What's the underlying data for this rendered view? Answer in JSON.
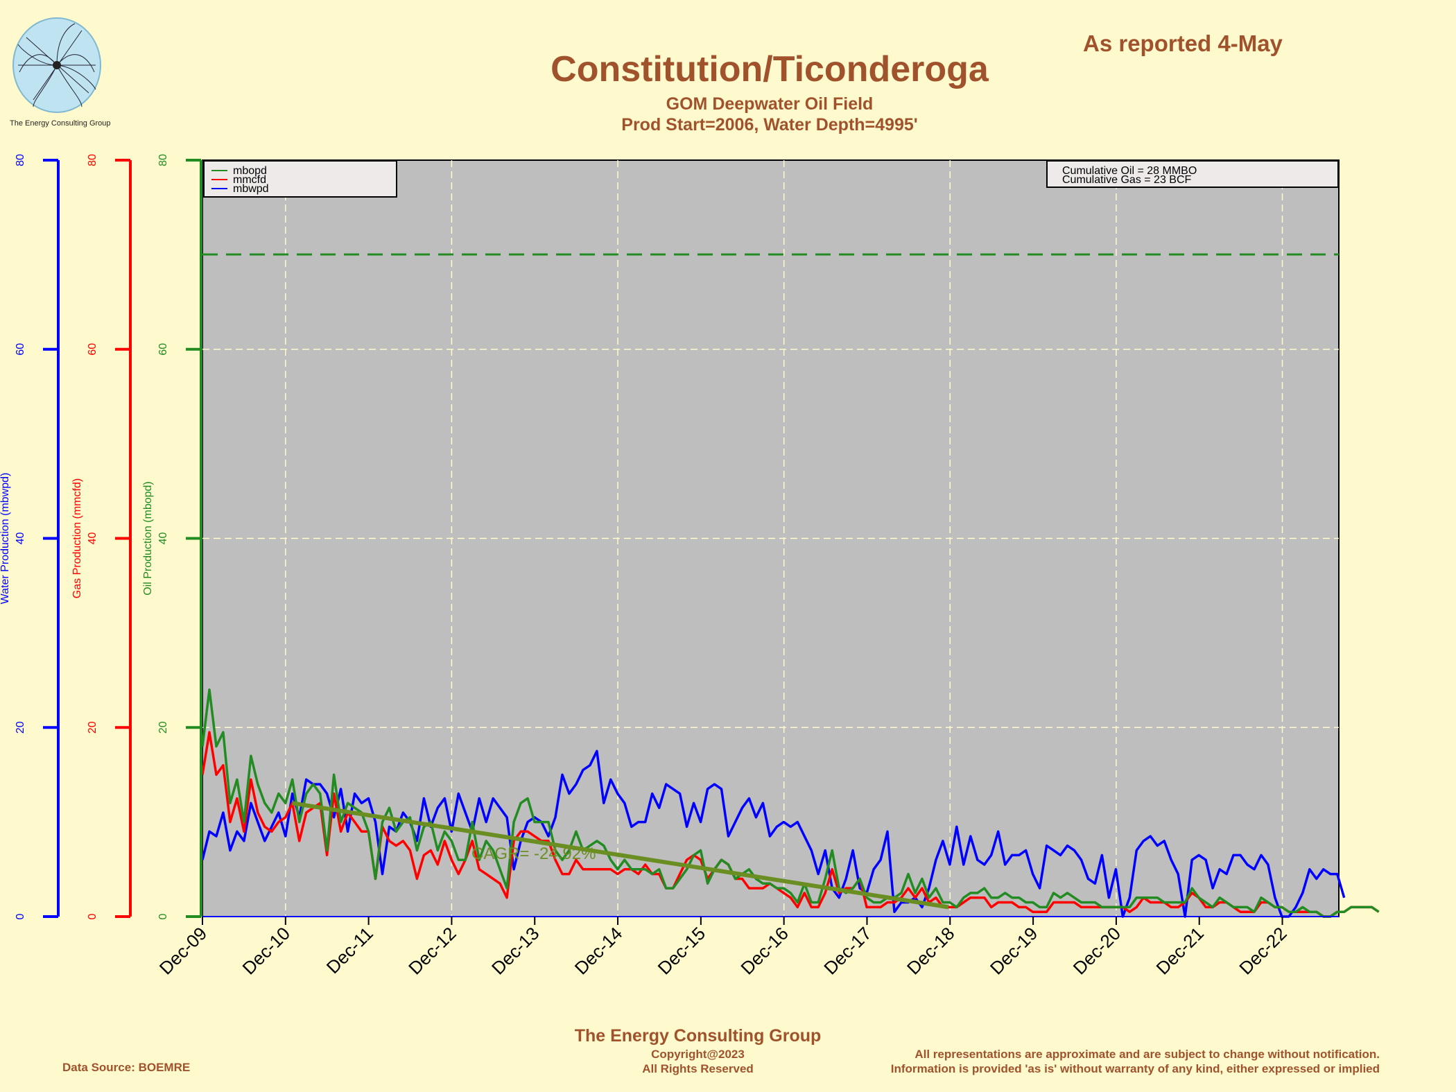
{
  "header": {
    "title": "Constitution/Ticonderoga",
    "subtitle": "GOM Deepwater Oil Field",
    "subtitle2": "Prod Start=2006, Water Depth=4995'",
    "as_reported": "As reported 4-May",
    "logo_caption": "The Energy Consulting Group"
  },
  "footer": {
    "company": "The Energy Consulting Group",
    "copyright": "Copyright@2023",
    "rights": "All Rights Reserved",
    "source": "Data Source: BOEMRE",
    "disclaimer1": "All representations are approximate and are subject to change without notification.",
    "disclaimer2": "Information is provided 'as is' without warranty of any kind, either expressed or implied"
  },
  "colors": {
    "background": "#fffacd",
    "plot_bg": "#bebebe",
    "oil": "#228b22",
    "gas": "#ff0000",
    "water": "#0000ff",
    "trend": "#6b8e23",
    "text_brown": "#a0522d"
  },
  "chart_data": {
    "type": "line",
    "title": "Constitution/Ticonderoga",
    "x_tick_labels": [
      "Dec-09",
      "Dec-10",
      "Dec-11",
      "Dec-12",
      "Dec-13",
      "Dec-14",
      "Dec-15",
      "Dec-16",
      "Dec-17",
      "Dec-18",
      "Dec-19",
      "Dec-20",
      "Dec-21",
      "Dec-22"
    ],
    "xlim": [
      2009.92,
      2023.6
    ],
    "axes": [
      {
        "label": "Water Production (mbwpd)",
        "color": "#0000ff",
        "ylim": [
          0,
          80
        ],
        "ticks": [
          0,
          20,
          40,
          60,
          80
        ]
      },
      {
        "label": "Gas Production (mmcfd)",
        "color": "#ff0000",
        "ylim": [
          0,
          80
        ],
        "ticks": [
          0,
          20,
          40,
          60,
          80
        ]
      },
      {
        "label": "Oil Production (mbopd)",
        "color": "#228b22",
        "ylim": [
          0,
          80
        ],
        "ticks": [
          0,
          20,
          40,
          60,
          80
        ]
      }
    ],
    "grid": true,
    "legend_position": "top-left",
    "legend": [
      "mbopd",
      "mmcfd",
      "mbwpd"
    ],
    "cumulative": [
      "Cumulative Oil = 28  MMBO",
      "Cumulative Gas = 23  BCF"
    ],
    "reference_line": {
      "value": 70,
      "style": "dashed",
      "color": "#228b22"
    },
    "trend": {
      "label": "CAGR= -24.92%",
      "x": [
        2011.0,
        2018.9
      ],
      "y": [
        12,
        1
      ]
    },
    "start_year": 2009.92,
    "step_years": 0.0833,
    "series": [
      {
        "name": "mbopd",
        "color": "#228b22",
        "values": [
          18,
          24,
          18,
          19.5,
          12,
          14.5,
          10,
          17,
          14,
          12,
          11,
          13,
          12,
          14.5,
          10,
          13,
          14,
          13,
          7,
          15,
          10,
          12,
          11.5,
          11,
          9,
          4,
          10,
          11.5,
          9,
          10,
          10.5,
          7,
          9.5,
          10,
          7,
          9,
          8,
          6,
          6,
          10,
          6,
          8,
          7,
          5,
          3,
          10,
          12,
          12.5,
          10,
          10,
          10,
          7,
          6,
          7,
          9,
          7,
          7.5,
          8,
          7.5,
          6,
          5,
          6,
          5,
          5,
          5,
          4.5,
          5,
          3,
          3,
          4,
          5,
          6.5,
          7,
          3.5,
          5,
          6,
          5.5,
          4,
          4.5,
          5,
          4,
          3.5,
          3.5,
          3,
          3,
          2.5,
          1.5,
          3.5,
          1.5,
          1.5,
          4,
          7,
          3,
          2.5,
          3,
          4,
          2,
          1.5,
          1.5,
          2,
          2,
          2.5,
          4.5,
          2.5,
          4,
          2,
          3,
          1.5,
          1.5,
          1,
          2,
          2.5,
          2.5,
          3,
          2,
          2,
          2.5,
          2,
          2,
          1.5,
          1.5,
          1,
          1,
          2.5,
          2,
          2.5,
          2,
          1.5,
          1.5,
          1.5,
          1,
          1,
          1,
          1,
          1,
          2,
          2,
          2,
          2,
          1.5,
          1.5,
          1.5,
          1.5,
          3,
          2,
          1.5,
          1,
          2,
          1.5,
          1,
          1,
          1,
          0.5,
          2,
          1.5,
          1,
          1,
          0.5,
          0.5,
          1,
          0.5,
          0.5,
          0,
          0,
          0.5,
          0.5,
          1,
          1,
          1,
          1,
          0.5
        ]
      },
      {
        "name": "mmcfd",
        "color": "#ff0000",
        "values": [
          15,
          19.5,
          15,
          16,
          10,
          12.5,
          9,
          14.5,
          11,
          9.5,
          9,
          10,
          10.5,
          12,
          8,
          11,
          11.5,
          12,
          6.5,
          13,
          9,
          11,
          10,
          9,
          9,
          4,
          9.5,
          8,
          7.5,
          8,
          7,
          4,
          6.5,
          7,
          5.5,
          8,
          6,
          4.5,
          6,
          8,
          5,
          4.5,
          4,
          3.5,
          2,
          8,
          9,
          9,
          8.5,
          8,
          8,
          6,
          4.5,
          4.5,
          6,
          5,
          5,
          5,
          5,
          5,
          4.5,
          5,
          5,
          4.5,
          5.5,
          4.5,
          4.5,
          3,
          3,
          4.5,
          6,
          6.5,
          6,
          4,
          5,
          6,
          5.5,
          4,
          4,
          3,
          3,
          3,
          3.5,
          3,
          2.5,
          2,
          1,
          2.5,
          1,
          1,
          2.5,
          5,
          2.5,
          3,
          3,
          4,
          1,
          1,
          1,
          1.5,
          1.5,
          2,
          3,
          2,
          3,
          1.5,
          2,
          1,
          1,
          1,
          1.5,
          2,
          2,
          2,
          1,
          1.5,
          1.5,
          1.5,
          1,
          1,
          0.5,
          0.5,
          0.5,
          1.5,
          1.5,
          1.5,
          1.5,
          1,
          1,
          1,
          1,
          1,
          1,
          1,
          0.5,
          1,
          2,
          1.5,
          1.5,
          1.5,
          1,
          1,
          1.5,
          2.5,
          2,
          1,
          1,
          1.5,
          1.5,
          1,
          0.5,
          0.5,
          0.5,
          1.5,
          1.5,
          1,
          1,
          0.5,
          0.5,
          0.5,
          0.5,
          0.5,
          0,
          0,
          0.5,
          0.5,
          1,
          1,
          1,
          1,
          0.5
        ]
      },
      {
        "name": "mbwpd",
        "color": "#0000ff",
        "values": [
          6,
          9,
          8.5,
          11,
          7,
          9,
          8,
          12,
          10,
          8,
          9.5,
          11,
          8.5,
          13,
          10.5,
          14.5,
          14,
          14,
          13,
          10.5,
          13.5,
          9,
          13,
          12,
          12.5,
          10,
          4.5,
          9.5,
          9,
          11,
          10,
          8,
          12.5,
          9.5,
          11.5,
          12.5,
          9,
          13,
          11,
          9,
          12.5,
          10,
          12.5,
          11.5,
          10.5,
          5,
          8,
          10,
          10.5,
          10,
          8.5,
          10.5,
          15,
          13,
          14,
          15.5,
          16,
          17.5,
          12,
          14.5,
          13,
          12,
          9.5,
          10,
          10,
          13,
          11.5,
          14,
          13.5,
          13,
          9.5,
          12,
          10,
          13.5,
          14,
          13.5,
          8.5,
          10,
          11.5,
          12.5,
          10.5,
          12,
          8.5,
          9.5,
          10,
          9.5,
          10,
          8.5,
          7,
          4.5,
          7,
          3,
          2,
          4,
          7,
          3,
          2.5,
          5,
          6,
          9,
          0.5,
          1.5,
          1.5,
          2,
          1,
          3,
          6,
          8,
          5.5,
          9.5,
          5.5,
          8.5,
          6,
          5.5,
          6.5,
          9,
          5.5,
          6.5,
          6.5,
          7,
          4.5,
          3,
          7.5,
          7,
          6.5,
          7.5,
          7,
          6,
          4,
          3.5,
          6.5,
          2,
          5,
          0,
          2,
          7,
          8,
          8.5,
          7.5,
          8,
          6,
          4.5,
          0,
          6,
          6.5,
          6,
          3,
          5,
          4.5,
          6.5,
          6.5,
          5.5,
          5,
          6.5,
          5.5,
          2,
          0,
          0,
          1,
          2.5,
          5,
          4,
          5,
          4.5,
          4.5,
          2
        ]
      }
    ]
  }
}
